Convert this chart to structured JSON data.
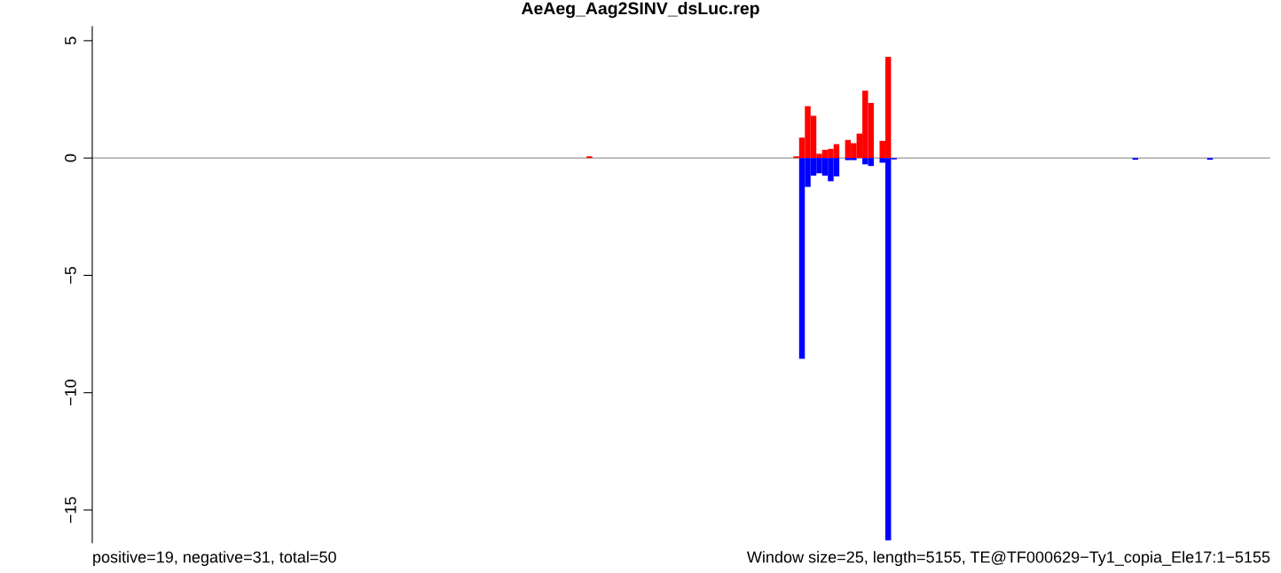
{
  "chart_data": {
    "type": "bar",
    "title": "AeAeg_Aag2SINV_dsLuc.rep",
    "categories": [
      null,
      null,
      null,
      null,
      null,
      null,
      null,
      null,
      null,
      null,
      null,
      null,
      null,
      null,
      null,
      null,
      null,
      null,
      null,
      null,
      null,
      null,
      null,
      null,
      null,
      null,
      null,
      null,
      null,
      null,
      null,
      null,
      null,
      null,
      null,
      null,
      null,
      null,
      null,
      null,
      null,
      null,
      null,
      null,
      null,
      null,
      null,
      null,
      null,
      null,
      null,
      null,
      null,
      null,
      null,
      null,
      null,
      null,
      null,
      null,
      null,
      null,
      null,
      null,
      null,
      null,
      null,
      null,
      null,
      null,
      null,
      null,
      null,
      null,
      null,
      null,
      null,
      null,
      null,
      null,
      null,
      null,
      null,
      null,
      null,
      null,
      null,
      null,
      null,
      null,
      null,
      null,
      null,
      null,
      null,
      null,
      null,
      null,
      null,
      null,
      null,
      null,
      null,
      null,
      null,
      null,
      null,
      null,
      null,
      null,
      null,
      null,
      null,
      null,
      null,
      null,
      null,
      null,
      null,
      null,
      null,
      null,
      null,
      null,
      null,
      null,
      null,
      null,
      null,
      null,
      null,
      null,
      null,
      null,
      null,
      null,
      null,
      null,
      null,
      null,
      null,
      null,
      null,
      null,
      null,
      null,
      null,
      null,
      null,
      null,
      null,
      null,
      null,
      null,
      null,
      null,
      null,
      null,
      null,
      null,
      null,
      null,
      null,
      null,
      null,
      null,
      null,
      null,
      null,
      null,
      null,
      null,
      null,
      null,
      null,
      null,
      null,
      null,
      null,
      null,
      null,
      null,
      null,
      null,
      null,
      null,
      null,
      null,
      null,
      null,
      null,
      null,
      null,
      null,
      null,
      null,
      null,
      null,
      null,
      null,
      null,
      null,
      null,
      null,
      null
    ],
    "series": [
      {
        "color": "#ff0000",
        "values": [
          0,
          0,
          0,
          0,
          0,
          0,
          0,
          0,
          0,
          0,
          0,
          0,
          0,
          0,
          0,
          0,
          0,
          0,
          0,
          0,
          0,
          0,
          0,
          0,
          0,
          0,
          0,
          0,
          0,
          0,
          0,
          0,
          0,
          0,
          0,
          0,
          0,
          0,
          0,
          0,
          0,
          0,
          0,
          0,
          0,
          0,
          0,
          0,
          0,
          0,
          0,
          0,
          0,
          0,
          0,
          0,
          0,
          0,
          0,
          0,
          0,
          0,
          0,
          0,
          0,
          0,
          0,
          0,
          0,
          0,
          0,
          0,
          0,
          0,
          0,
          0,
          0,
          0,
          0,
          0,
          0,
          0,
          0,
          0,
          0,
          0,
          0.07,
          0,
          0,
          0,
          0,
          0,
          0,
          0,
          0,
          0,
          0,
          0,
          0,
          0,
          0,
          0,
          0,
          0,
          0,
          0,
          0,
          0,
          0,
          0,
          0,
          0,
          0,
          0,
          0,
          0,
          0,
          0,
          0,
          0,
          0,
          0,
          0.07,
          0.87,
          2.21,
          1.8,
          0.18,
          0.35,
          0.39,
          0.59,
          0,
          0.77,
          0.63,
          1.04,
          2.87,
          2.35,
          0,
          0.73,
          4.31,
          0,
          0,
          0,
          0,
          0,
          0,
          0,
          0,
          0,
          0,
          0,
          0,
          0,
          0,
          0,
          0,
          0,
          0,
          0,
          0,
          0,
          0,
          0,
          0,
          0,
          0,
          0,
          0,
          0,
          0,
          0,
          0,
          0,
          0,
          0,
          0,
          0,
          0,
          0,
          0,
          0,
          0,
          0,
          0,
          0,
          0,
          0,
          0,
          0,
          0,
          0,
          0,
          0,
          0,
          0,
          0,
          0,
          0,
          0,
          0,
          0,
          0,
          0,
          0,
          0,
          0
        ]
      },
      {
        "color": "#0000ff",
        "values": [
          0,
          0,
          0,
          0,
          0,
          0,
          0,
          0,
          0,
          0,
          0,
          0,
          0,
          0,
          0,
          0,
          0,
          0,
          0,
          0,
          0,
          0,
          0,
          0,
          0,
          0,
          0,
          0,
          0,
          0,
          0,
          0,
          0,
          0,
          0,
          0,
          0,
          0,
          0,
          0,
          0,
          0,
          0,
          0,
          0,
          0,
          0,
          0,
          0,
          0,
          0,
          0,
          0,
          0,
          0,
          0,
          0,
          0,
          0,
          0,
          0,
          0,
          0,
          0,
          0,
          0,
          0,
          0,
          0,
          0,
          0,
          0,
          0,
          0,
          0,
          0,
          0,
          0,
          0,
          0,
          0,
          0,
          0,
          0,
          0,
          0,
          0,
          0,
          0,
          0,
          0,
          0,
          0,
          0,
          0,
          0,
          0,
          0,
          0,
          0,
          0,
          0,
          0,
          0,
          0,
          0,
          0,
          0,
          0,
          0,
          0,
          0,
          0,
          0,
          0,
          0,
          0,
          0,
          0,
          0,
          0,
          0,
          0,
          -8.56,
          -1.23,
          -0.75,
          -0.65,
          -0.75,
          -0.99,
          -0.78,
          0,
          -0.09,
          -0.09,
          0,
          -0.27,
          -0.34,
          0,
          -0.2,
          -16.3,
          -0.06,
          0,
          0,
          0,
          0,
          0,
          0,
          0,
          0,
          0,
          0,
          0,
          0,
          0,
          0,
          0,
          0,
          0,
          0,
          0,
          0,
          0,
          0,
          0,
          0,
          0,
          0,
          0,
          0,
          0,
          0,
          0,
          0,
          0,
          0,
          0,
          0,
          0,
          0,
          0,
          0,
          0,
          -0.07,
          0,
          0,
          0,
          0,
          0,
          0,
          0,
          0,
          0,
          0,
          0,
          0,
          -0.07,
          0,
          0,
          0,
          0,
          0,
          0,
          0,
          0,
          0,
          0
        ]
      }
    ],
    "ylim": [
      -16.4,
      5.6
    ],
    "yticks": [
      {
        "value": -15,
        "label": "−15"
      },
      {
        "value": -10,
        "label": "−10"
      },
      {
        "value": -5,
        "label": "−5"
      },
      0,
      5
    ],
    "ref_lines": [
      {
        "axis": "y",
        "value": 0,
        "color": "#999999"
      }
    ],
    "tick_labels": "y",
    "grid": false,
    "legend": false,
    "annotations": [
      "positive=19, negative=31, total=50",
      "Window size=25, length=5155, TE@TF000629−Ty1_copia_Ele17:1−5155"
    ]
  }
}
